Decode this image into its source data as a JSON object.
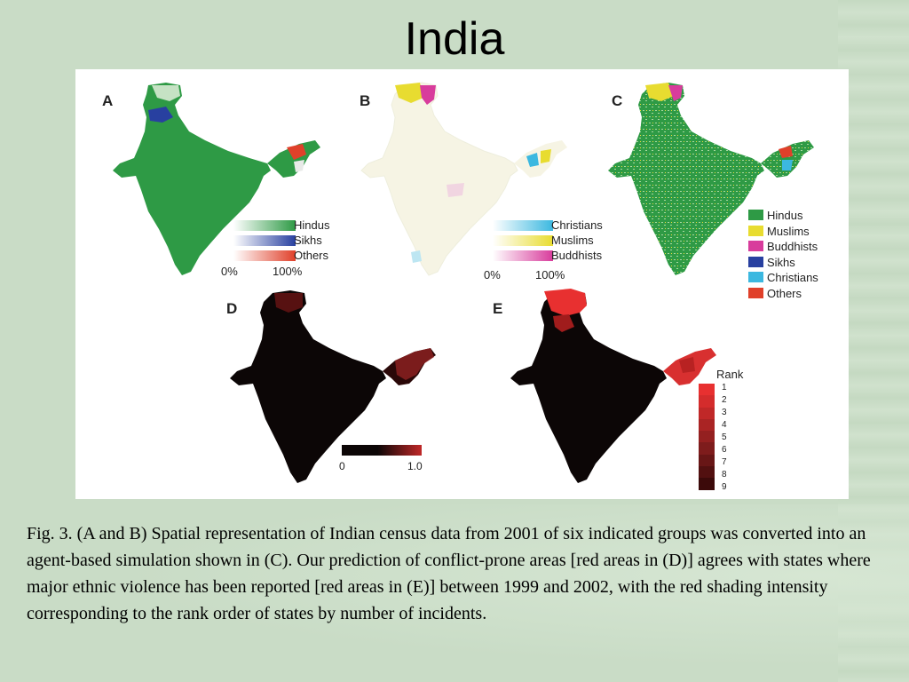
{
  "title": "India",
  "panels": {
    "a": {
      "letter": "A",
      "legend": [
        "Hindus",
        "Sikhs",
        "Others"
      ],
      "scale_min": "0%",
      "scale_max": "100%"
    },
    "b": {
      "letter": "B",
      "legend": [
        "Christians",
        "Muslims",
        "Buddhists"
      ],
      "scale_min": "0%",
      "scale_max": "100%"
    },
    "c": {
      "letter": "C",
      "legend": [
        "Hindus",
        "Muslims",
        "Buddhists",
        "Sikhs",
        "Christians",
        "Others"
      ]
    },
    "d": {
      "letter": "D",
      "scale_min": "0",
      "scale_max": "1.0"
    },
    "e": {
      "letter": "E",
      "rank_title": "Rank",
      "ranks": [
        "1",
        "2",
        "3",
        "4",
        "5",
        "6",
        "7",
        "8",
        "9"
      ]
    }
  },
  "colors": {
    "hindus": "#2e9a45",
    "sikhs": "#2840a0",
    "others": "#e0402a",
    "christians": "#3cb8e0",
    "muslims": "#e8dc30",
    "buddhists": "#d83c9c",
    "conflict": "#d83030",
    "background": "#c9dcc6"
  },
  "caption": "Fig. 3. (A and B) Spatial representation of Indian census data from 2001 of six indicated groups was converted into an agent-based simulation shown in (C). Our prediction of conflict-prone areas [red areas in (D)] agrees with states where major ethnic violence has been reported [red areas in (E)] between 1999 and 2002, with the red shading intensity corresponding to the rank order of states by number of incidents."
}
